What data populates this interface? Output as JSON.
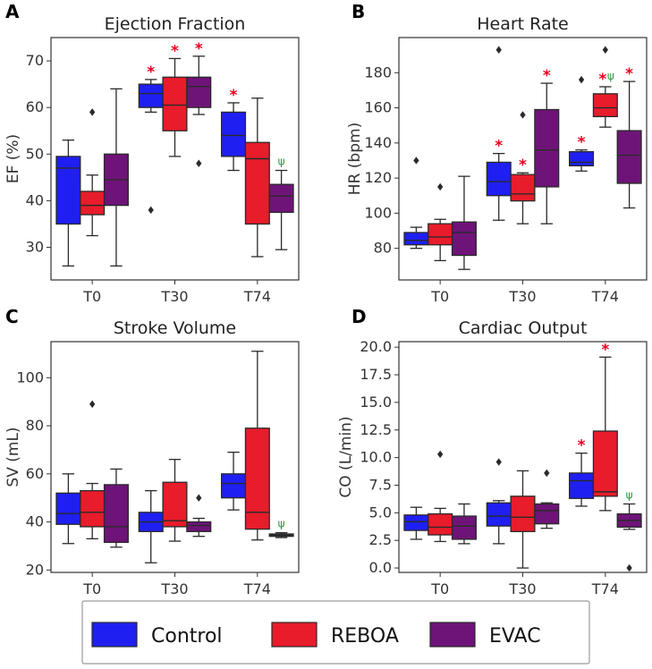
{
  "colors": {
    "Control": "#1f1ff2",
    "REBOA": "#e81c2a",
    "EVAC": "#6e1478"
  },
  "legend": {
    "items": [
      "Control",
      "REBOA",
      "EVAC"
    ]
  },
  "chart_data": [
    {
      "id": "A",
      "type": "box",
      "title": "Ejection Fraction",
      "ylabel": "EF (%)",
      "categories": [
        "T0",
        "T30",
        "T74"
      ],
      "ylim": [
        23,
        75
      ],
      "yticks": [
        30,
        40,
        50,
        60,
        70
      ],
      "series": [
        {
          "name": "Control",
          "boxes": [
            {
              "min": 26,
              "q1": 35,
              "med": 47,
              "q3": 49.5,
              "max": 53,
              "outliers": []
            },
            {
              "min": 59,
              "q1": 60,
              "med": 63,
              "q3": 65,
              "max": 66,
              "outliers": [
                38
              ],
              "sig": "*"
            },
            {
              "min": 46.5,
              "q1": 49.5,
              "med": 54,
              "q3": 59,
              "max": 61,
              "outliers": [],
              "sig": "*"
            }
          ]
        },
        {
          "name": "REBOA",
          "boxes": [
            {
              "min": 32.5,
              "q1": 37,
              "med": 39,
              "q3": 42,
              "max": 45.5,
              "outliers": [
                59
              ]
            },
            {
              "min": 49.5,
              "q1": 55,
              "med": 60.5,
              "q3": 66.5,
              "max": 70.5,
              "outliers": [],
              "sig": "*"
            },
            {
              "min": 28,
              "q1": 35,
              "med": 49,
              "q3": 52.5,
              "max": 62,
              "outliers": []
            }
          ]
        },
        {
          "name": "EVAC",
          "boxes": [
            {
              "min": 26,
              "q1": 39,
              "med": 44.5,
              "q3": 50,
              "max": 64,
              "outliers": []
            },
            {
              "min": 58.5,
              "q1": 60,
              "med": 64.5,
              "q3": 66.5,
              "max": 71,
              "outliers": [
                48
              ],
              "sig": "*"
            },
            {
              "min": 29.5,
              "q1": 37.5,
              "med": 41,
              "q3": 43.5,
              "max": 46.5,
              "outliers": [],
              "sig": "ψ"
            }
          ]
        }
      ]
    },
    {
      "id": "B",
      "type": "box",
      "title": "Heart Rate",
      "ylabel": "HR (bpm)",
      "categories": [
        "T0",
        "T30",
        "T74"
      ],
      "ylim": [
        62,
        200
      ],
      "yticks": [
        80,
        100,
        120,
        140,
        160,
        180
      ],
      "series": [
        {
          "name": "Control",
          "boxes": [
            {
              "min": 80,
              "q1": 82,
              "med": 84.5,
              "q3": 89,
              "max": 92,
              "outliers": [
                130
              ]
            },
            {
              "min": 96,
              "q1": 110,
              "med": 118,
              "q3": 129,
              "max": 134,
              "outliers": [
                193
              ],
              "sig": "*"
            },
            {
              "min": 124,
              "q1": 127,
              "med": 129,
              "q3": 135,
              "max": 136,
              "outliers": [
                176
              ],
              "sig": "*"
            }
          ]
        },
        {
          "name": "REBOA",
          "boxes": [
            {
              "min": 73,
              "q1": 82,
              "med": 86.5,
              "q3": 94,
              "max": 96.5,
              "outliers": [
                115
              ]
            },
            {
              "min": 94,
              "q1": 107,
              "med": 111,
              "q3": 122,
              "max": 123,
              "outliers": [
                156
              ],
              "sig": "*"
            },
            {
              "min": 149,
              "q1": 155,
              "med": 160,
              "q3": 168,
              "max": 172,
              "outliers": [
                193
              ],
              "sig": "*ψ"
            }
          ]
        },
        {
          "name": "EVAC",
          "boxes": [
            {
              "min": 68,
              "q1": 76,
              "med": 89,
              "q3": 95,
              "max": 121,
              "outliers": []
            },
            {
              "min": 94,
              "q1": 115,
              "med": 136,
              "q3": 159,
              "max": 174,
              "outliers": [],
              "sig": "*"
            },
            {
              "min": 103,
              "q1": 117,
              "med": 133,
              "q3": 147,
              "max": 175,
              "outliers": [],
              "sig": "*"
            }
          ]
        }
      ]
    },
    {
      "id": "C",
      "type": "box",
      "title": "Stroke Volume",
      "ylabel": "SV (mL)",
      "categories": [
        "T0",
        "T30",
        "T74"
      ],
      "ylim": [
        19,
        115
      ],
      "yticks": [
        20,
        40,
        60,
        80,
        100
      ],
      "series": [
        {
          "name": "Control",
          "boxes": [
            {
              "min": 31,
              "q1": 39,
              "med": 43.5,
              "q3": 52,
              "max": 60,
              "outliers": []
            },
            {
              "min": 23,
              "q1": 36,
              "med": 40,
              "q3": 44,
              "max": 53,
              "outliers": []
            },
            {
              "min": 45,
              "q1": 50,
              "med": 56,
              "q3": 60,
              "max": 69,
              "outliers": []
            }
          ]
        },
        {
          "name": "REBOA",
          "boxes": [
            {
              "min": 33,
              "q1": 38,
              "med": 44,
              "q3": 53,
              "max": 56,
              "outliers": [
                89
              ]
            },
            {
              "min": 32,
              "q1": 38,
              "med": 40.5,
              "q3": 56.5,
              "max": 66,
              "outliers": []
            },
            {
              "min": 32.5,
              "q1": 37,
              "med": 44,
              "q3": 79,
              "max": 111,
              "outliers": []
            }
          ]
        },
        {
          "name": "EVAC",
          "boxes": [
            {
              "min": 29.5,
              "q1": 31.5,
              "med": 38,
              "q3": 55.5,
              "max": 62,
              "outliers": []
            },
            {
              "min": 34,
              "q1": 36,
              "med": 38.5,
              "q3": 40,
              "max": 41.5,
              "outliers": [
                50
              ]
            },
            {
              "min": 33.5,
              "q1": 34,
              "med": 34.5,
              "q3": 35,
              "max": 35.5,
              "outliers": [],
              "sig": "ψ"
            }
          ]
        }
      ]
    },
    {
      "id": "D",
      "type": "box",
      "title": "Cardiac Output",
      "ylabel": "CO (L/min)",
      "categories": [
        "T0",
        "T30",
        "T74"
      ],
      "ylim": [
        -0.4,
        20.5
      ],
      "yticks": [
        0.0,
        2.5,
        5.0,
        7.5,
        10.0,
        12.5,
        15.0,
        17.5,
        20.0
      ],
      "ytick_labels": [
        "0.0",
        "2.5",
        "5.0",
        "7.5",
        "10.0",
        "12.5",
        "15.0",
        "17.5",
        "20.0"
      ],
      "series": [
        {
          "name": "Control",
          "boxes": [
            {
              "min": 2.6,
              "q1": 3.4,
              "med": 4.2,
              "q3": 4.8,
              "max": 5.5,
              "outliers": []
            },
            {
              "min": 2.2,
              "q1": 3.8,
              "med": 4.7,
              "q3": 5.9,
              "max": 6.1,
              "outliers": [
                9.6
              ]
            },
            {
              "min": 5.6,
              "q1": 6.3,
              "med": 7.9,
              "q3": 8.6,
              "max": 10.4,
              "outliers": [],
              "sig": "*"
            }
          ]
        },
        {
          "name": "REBOA",
          "boxes": [
            {
              "min": 2.4,
              "q1": 3.0,
              "med": 3.7,
              "q3": 4.9,
              "max": 5.4,
              "outliers": [
                10.3
              ]
            },
            {
              "min": 0.0,
              "q1": 3.3,
              "med": 4.6,
              "q3": 6.5,
              "max": 8.8,
              "outliers": []
            },
            {
              "min": 5.2,
              "q1": 6.5,
              "med": 6.9,
              "q3": 12.4,
              "max": 19.1,
              "outliers": [],
              "sig": "*"
            }
          ]
        },
        {
          "name": "EVAC",
          "boxes": [
            {
              "min": 2.2,
              "q1": 2.6,
              "med": 3.8,
              "q3": 4.7,
              "max": 5.8,
              "outliers": []
            },
            {
              "min": 3.6,
              "q1": 4.0,
              "med": 5.2,
              "q3": 5.8,
              "max": 5.9,
              "outliers": [
                8.6
              ]
            },
            {
              "min": 3.5,
              "q1": 3.7,
              "med": 4.3,
              "q3": 4.9,
              "max": 5.8,
              "outliers": [
                0.0
              ],
              "sig": "ψ"
            }
          ]
        }
      ]
    }
  ]
}
